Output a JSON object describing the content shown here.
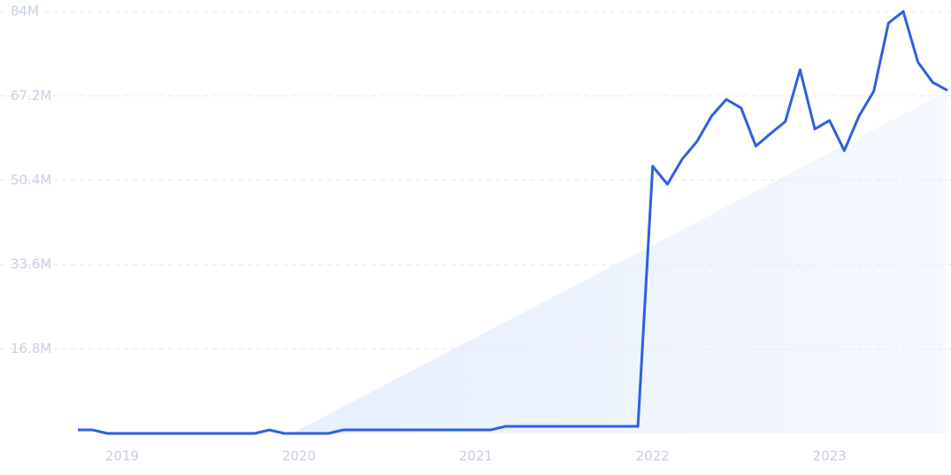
{
  "chart_data": {
    "type": "line",
    "x": [
      2018.75,
      2018.8333,
      2018.9167,
      2019,
      2019.0833,
      2019.1667,
      2019.25,
      2019.3333,
      2019.4167,
      2019.5,
      2019.5833,
      2019.6667,
      2019.75,
      2019.8333,
      2019.9167,
      2020,
      2020.0833,
      2020.1667,
      2020.25,
      2020.3333,
      2020.4167,
      2020.5,
      2020.5833,
      2020.6667,
      2020.75,
      2020.8333,
      2020.9167,
      2021,
      2021.0833,
      2021.1667,
      2021.25,
      2021.3333,
      2021.4167,
      2021.5,
      2021.5833,
      2021.6667,
      2021.75,
      2021.8333,
      2021.9167,
      2022,
      2022.0833,
      2022.1667,
      2022.25,
      2022.3333,
      2022.4167,
      2022.5,
      2022.5833,
      2022.6667,
      2022.75,
      2022.8333,
      2022.9167,
      2023,
      2023.0833,
      2023.1667,
      2023.25,
      2023.3333,
      2023.4167,
      2023.5,
      2023.5833,
      2023.6667
    ],
    "series": [
      {
        "color": "#2f5fde",
        "values": [
          0.7,
          0.7,
          0,
          0,
          0,
          0,
          0,
          0,
          0,
          0,
          0,
          0,
          0,
          0.7,
          0,
          0,
          0,
          0,
          0.7,
          0.7,
          0.7,
          0.7,
          0.7,
          0.7,
          0.7,
          0.7,
          0.7,
          0.7,
          0.7,
          1.4,
          1.4,
          1.4,
          1.4,
          1.4,
          1.4,
          1.4,
          1.4,
          1.4,
          1.4,
          53.2,
          49.6,
          54.6,
          58.1,
          63.2,
          66.5,
          64.8,
          57.2,
          59.7,
          62.1,
          72.4,
          60.6,
          62.3,
          56.3,
          63.2,
          68.1,
          81.7,
          84,
          73.9,
          69.9,
          68.3
        ]
      }
    ],
    "xlim": [
      2018.75,
      2023.6667
    ],
    "xticks": [
      2019,
      2020,
      2021,
      2022,
      2023
    ],
    "ylim": [
      0,
      84
    ],
    "yticks": [
      {
        "value": 16.8,
        "label": "16.8M"
      },
      {
        "value": 33.6,
        "label": "33.6M"
      },
      {
        "value": 50.4,
        "label": "50.4M"
      },
      {
        "value": 67.2,
        "label": "67.2M"
      },
      {
        "value": 84,
        "label": "84M"
      }
    ],
    "grid": true
  }
}
